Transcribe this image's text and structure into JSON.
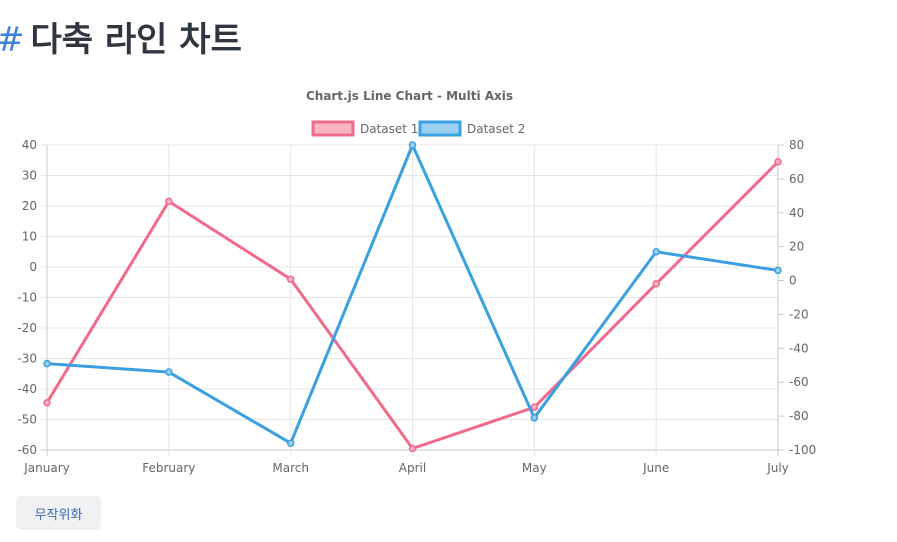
{
  "page": {
    "hash": "#",
    "title": "다축 라인 차트",
    "button_label": "무작위화"
  },
  "chart_data": {
    "type": "line",
    "title": "Chart.js Line Chart - Multi Axis",
    "legend_position": "top-center",
    "grid": true,
    "categories": [
      "January",
      "February",
      "March",
      "April",
      "May",
      "June",
      "July"
    ],
    "y_axis_left": {
      "ylim": [
        -60,
        40
      ],
      "ticks": [
        40,
        30,
        20,
        10,
        0,
        -10,
        -20,
        -30,
        -40,
        -50,
        -60
      ]
    },
    "y_axis_right": {
      "ylim": [
        -100,
        80
      ],
      "ticks": [
        80,
        60,
        40,
        20,
        0,
        -20,
        -40,
        -60,
        -80,
        -100
      ]
    },
    "series": [
      {
        "name": "Dataset 1",
        "axis": "left",
        "color": "#f06b8b",
        "fill": "#f9b3c4",
        "values": [
          -44.5,
          21.5,
          -4,
          -59.5,
          -46,
          -5.5,
          34.5
        ]
      },
      {
        "name": "Dataset 2",
        "axis": "right",
        "color": "#3aa0e2",
        "fill": "#9cd0f1",
        "values": [
          -49,
          -54,
          -96,
          80,
          -81,
          17,
          6
        ]
      }
    ]
  }
}
